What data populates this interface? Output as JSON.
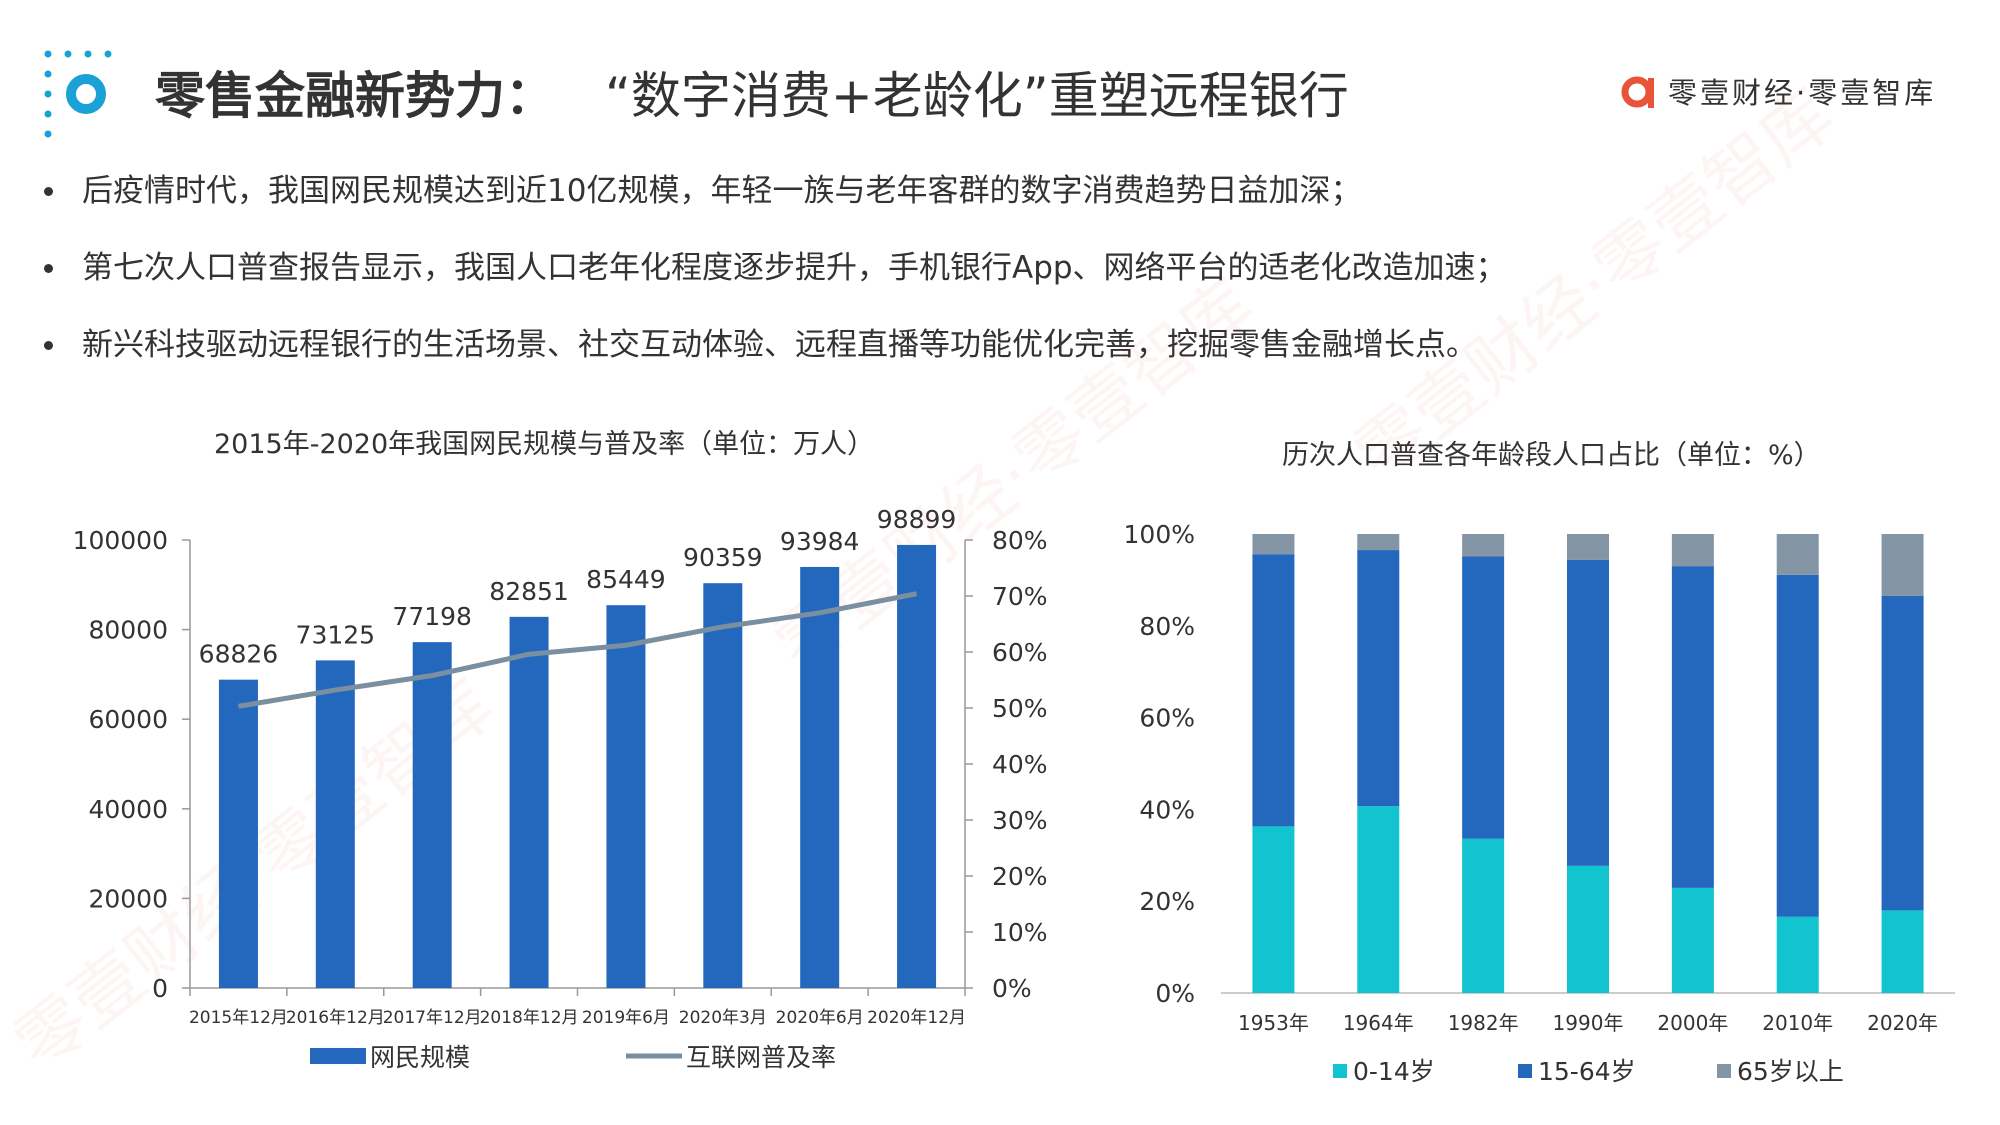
{
  "header": {
    "title": "零售金融新势力：",
    "subtitle": "“数字消费+老龄化”重塑远程银行",
    "brand_name": "零壹财经·零壹智库",
    "brand_color": "#e8543a",
    "logo_color": "#1aa1d6"
  },
  "bullets": [
    "后疫情时代，我国网民规模达到近10亿规模，年轻一族与老年客群的数字消费趋势日益加深；",
    "第七次人口普查报告显示，我国人口老年化程度逐步提升，手机银行App、网络平台的适老化改造加速；",
    "新兴科技驱动远程银行的生活场景、社交互动体验、远程直播等功能优化完善，挖掘零售金融增长点。"
  ],
  "watermark": "零壹财经·零壹智库",
  "chart_data": [
    {
      "type": "bar",
      "title": "2015年-2020年我国网民规模与普及率（单位：万人）",
      "categories": [
        "2015年12月",
        "2016年12月",
        "2017年12月",
        "2018年12月",
        "2019年6月",
        "2020年3月",
        "2020年6月",
        "2020年12月"
      ],
      "series": [
        {
          "name": "网民规模",
          "type": "bar",
          "axis": "left",
          "color": "#2468be",
          "values": [
            68826,
            73125,
            77198,
            82851,
            85449,
            90359,
            93984,
            98899
          ]
        },
        {
          "name": "互联网普及率",
          "type": "line",
          "axis": "right",
          "color": "#7a8fa0",
          "values": [
            50.3,
            53.2,
            55.8,
            59.6,
            61.2,
            64.5,
            67.0,
            70.4
          ]
        }
      ],
      "data_labels": [
        "68826",
        "73125",
        "77198",
        "82851",
        "85449",
        "90359",
        "93984",
        "98899"
      ],
      "ylim_left": [
        0,
        100000
      ],
      "left_ticks": [
        "0",
        "20000",
        "40000",
        "60000",
        "80000",
        "100000"
      ],
      "ylim_right": [
        0,
        80
      ],
      "right_ticks": [
        "0%",
        "10%",
        "20%",
        "30%",
        "40%",
        "50%",
        "60%",
        "70%",
        "80%"
      ],
      "legend_position": "bottom",
      "grid": false
    },
    {
      "type": "bar",
      "stacked": "percent",
      "title": "历次人口普查各年龄段人口占比（单位：%）",
      "categories": [
        "1953年",
        "1964年",
        "1982年",
        "1990年",
        "2000年",
        "2010年",
        "2020年"
      ],
      "series": [
        {
          "name": "0-14岁",
          "color": "#12c3d0",
          "values": [
            36.3,
            40.7,
            33.6,
            27.7,
            22.9,
            16.6,
            18.0
          ]
        },
        {
          "name": "15-64岁",
          "color": "#2468be",
          "values": [
            59.3,
            55.8,
            61.5,
            66.7,
            70.1,
            74.5,
            68.5
          ]
        },
        {
          "name": "65岁以上",
          "color": "#8496a6",
          "values": [
            4.4,
            3.5,
            4.9,
            5.6,
            7.0,
            8.9,
            13.5
          ]
        }
      ],
      "ylim": [
        0,
        100
      ],
      "y_ticks": [
        "0%",
        "20%",
        "40%",
        "60%",
        "80%",
        "100%"
      ],
      "legend_position": "bottom",
      "grid": false
    }
  ]
}
